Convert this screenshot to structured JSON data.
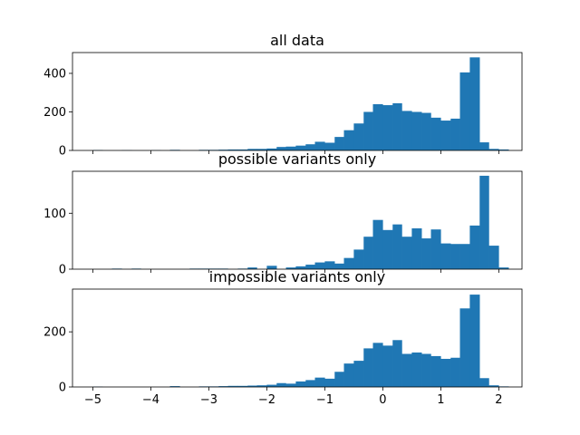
{
  "chart_data": [
    {
      "type": "bar",
      "title": "all data",
      "xlim": [
        -5.35,
        2.4
      ],
      "ylim": [
        0,
        508
      ],
      "x_ticks": [
        -5,
        -4,
        -3,
        -2,
        -1,
        0,
        1,
        2
      ],
      "x_tick_labels": [
        "−5",
        "−4",
        "−3",
        "−2",
        "−1",
        "0",
        "1",
        "2"
      ],
      "show_x_tick_labels": false,
      "y_ticks": [
        0,
        200,
        400
      ],
      "y_tick_labels": [
        "0",
        "200",
        "400"
      ],
      "bin_edges": [
        -5.0,
        -4.83,
        -4.67,
        -4.5,
        -4.33,
        -4.17,
        -4.0,
        -3.83,
        -3.67,
        -3.5,
        -3.33,
        -3.17,
        -3.0,
        -2.83,
        -2.67,
        -2.5,
        -2.33,
        -2.17,
        -2.0,
        -1.83,
        -1.67,
        -1.5,
        -1.33,
        -1.17,
        -1.0,
        -0.83,
        -0.67,
        -0.5,
        -0.33,
        -0.17,
        0.0,
        0.17,
        0.33,
        0.5,
        0.67,
        0.83,
        1.0,
        1.17,
        1.33,
        1.5,
        1.67,
        1.83,
        2.0,
        2.17
      ],
      "values": [
        2,
        0,
        0,
        1,
        0,
        0,
        1,
        0,
        3,
        0,
        0,
        3,
        3,
        4,
        5,
        5,
        8,
        8,
        10,
        18,
        20,
        25,
        32,
        45,
        40,
        70,
        105,
        140,
        200,
        240,
        235,
        245,
        205,
        200,
        195,
        170,
        155,
        165,
        405,
        483,
        42,
        8,
        5
      ],
      "bar_color": "#1f77b4"
    },
    {
      "type": "bar",
      "title": "possible variants only",
      "xlim": [
        -5.35,
        2.4
      ],
      "ylim": [
        0,
        175
      ],
      "x_ticks": [
        -5,
        -4,
        -3,
        -2,
        -1,
        0,
        1,
        2
      ],
      "x_tick_labels": [
        "−5",
        "−4",
        "−3",
        "−2",
        "−1",
        "0",
        "1",
        "2"
      ],
      "show_x_tick_labels": false,
      "y_ticks": [
        0,
        100
      ],
      "y_tick_labels": [
        "0",
        "100"
      ],
      "bin_edges": [
        -5.0,
        -4.83,
        -4.67,
        -4.5,
        -4.33,
        -4.17,
        -4.0,
        -3.83,
        -3.67,
        -3.5,
        -3.33,
        -3.17,
        -3.0,
        -2.83,
        -2.67,
        -2.5,
        -2.33,
        -2.17,
        -2.0,
        -1.83,
        -1.67,
        -1.5,
        -1.33,
        -1.17,
        -1.0,
        -0.83,
        -0.67,
        -0.5,
        -0.33,
        -0.17,
        0.0,
        0.17,
        0.33,
        0.5,
        0.67,
        0.83,
        1.0,
        1.17,
        1.33,
        1.5,
        1.67,
        1.83,
        2.0,
        2.17
      ],
      "values": [
        0,
        0,
        1,
        0,
        1,
        0,
        0,
        0,
        0,
        0,
        1,
        1,
        1,
        1,
        0,
        1,
        3,
        0,
        6,
        0,
        3,
        5,
        8,
        12,
        14,
        10,
        20,
        35,
        58,
        88,
        70,
        80,
        58,
        73,
        55,
        71,
        46,
        45,
        45,
        78,
        167,
        42,
        3
      ],
      "bar_color": "#1f77b4"
    },
    {
      "type": "bar",
      "title": "impossible variants only",
      "xlim": [
        -5.35,
        2.4
      ],
      "ylim": [
        0,
        355
      ],
      "x_ticks": [
        -5,
        -4,
        -3,
        -2,
        -1,
        0,
        1,
        2
      ],
      "x_tick_labels": [
        "−5",
        "−4",
        "−3",
        "−2",
        "−1",
        "0",
        "1",
        "2"
      ],
      "show_x_tick_labels": true,
      "y_ticks": [
        0,
        200
      ],
      "y_tick_labels": [
        "0",
        "200"
      ],
      "bin_edges": [
        -5.0,
        -4.83,
        -4.67,
        -4.5,
        -4.33,
        -4.17,
        -4.0,
        -3.83,
        -3.67,
        -3.5,
        -3.33,
        -3.17,
        -3.0,
        -2.83,
        -2.67,
        -2.5,
        -2.33,
        -2.17,
        -2.0,
        -1.83,
        -1.67,
        -1.5,
        -1.33,
        -1.17,
        -1.0,
        -0.83,
        -0.67,
        -0.5,
        -0.33,
        -0.17,
        0.0,
        0.17,
        0.33,
        0.5,
        0.67,
        0.83,
        1.0,
        1.17,
        1.33,
        1.5,
        1.67,
        1.83,
        2.0,
        2.17
      ],
      "values": [
        1,
        0,
        0,
        0,
        0,
        0,
        0,
        0,
        3,
        0,
        0,
        2,
        2,
        3,
        4,
        4,
        5,
        6,
        8,
        14,
        12,
        20,
        25,
        34,
        30,
        55,
        85,
        95,
        140,
        160,
        150,
        170,
        120,
        125,
        120,
        112,
        102,
        106,
        285,
        335,
        32,
        6,
        2
      ],
      "bar_color": "#1f77b4"
    }
  ]
}
